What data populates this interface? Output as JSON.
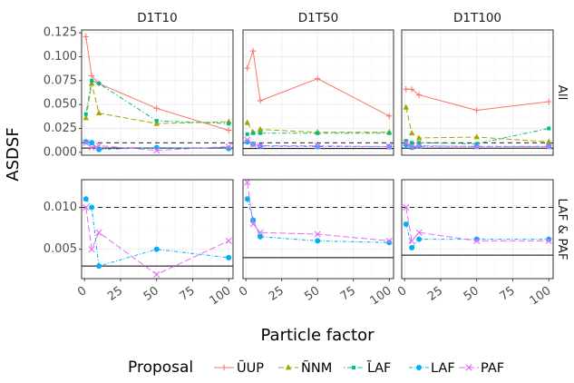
{
  "chart_data": {
    "type": "line",
    "ylabel": "ASDSF",
    "xlabel": "Particle factor",
    "x": [
      1,
      5,
      10,
      50,
      100
    ],
    "x_ticks": [
      0,
      25,
      50,
      75,
      100
    ],
    "x_tick_labels": [
      "0",
      "25",
      "50",
      "75",
      "100"
    ],
    "xlim": [
      -2,
      103
    ],
    "columns": [
      "D1T10",
      "D1T50",
      "D1T100"
    ],
    "rows": [
      "All",
      "LAF & PAF"
    ],
    "row_scales": [
      {
        "ylim": [
          -0.003,
          0.128
        ],
        "ticks": [
          0.0,
          0.025,
          0.05,
          0.075,
          0.1,
          0.125
        ],
        "tick_labels": [
          "0.000",
          "0.025",
          "0.050",
          "0.075",
          "0.100",
          "0.125"
        ]
      },
      {
        "ylim": [
          0.0015,
          0.0133
        ],
        "ticks": [
          0.005,
          0.01
        ],
        "tick_labels": [
          "0.005",
          "0.010"
        ]
      }
    ],
    "legend": {
      "title": "Proposal",
      "placement": "bottom",
      "entries": [
        "ŨUP",
        "ÑNM",
        "L̃AF",
        "LAF",
        "PAF"
      ]
    },
    "series_styles": [
      {
        "name": "ŨUP",
        "color": "#F8766D",
        "dash": "",
        "marker": "plus"
      },
      {
        "name": "ÑNM",
        "color": "#A3A500",
        "dash": "6 3",
        "marker": "triangle"
      },
      {
        "name": "L̃AF",
        "color": "#00BF7D",
        "dash": "1.5 2.5 5 2.5",
        "marker": "square"
      },
      {
        "name": "LAF",
        "color": "#00B0F6",
        "dash": "4 2 1 2",
        "marker": "circle"
      },
      {
        "name": "PAF",
        "color": "#E76BF3",
        "dash": "7 3",
        "marker": "x"
      }
    ],
    "panels": [
      {
        "row": 0,
        "col": 0,
        "hline_dashed": 0.01,
        "hline_solid": 0.0045,
        "series": [
          {
            "name": "ŨUP",
            "values": [
              0.121,
              0.08,
              0.072,
              0.046,
              0.023
            ]
          },
          {
            "name": "ÑNM",
            "values": [
              0.036,
              0.072,
              0.041,
              0.03,
              0.032
            ]
          },
          {
            "name": "L̃AF",
            "values": [
              0.04,
              0.075,
              0.072,
              0.033,
              0.03
            ]
          },
          {
            "name": "LAF",
            "values": [
              0.011,
              0.01,
              0.003,
              0.005,
              0.004
            ]
          },
          {
            "name": "PAF",
            "values": [
              0.01,
              0.005,
              0.007,
              0.002,
              0.006
            ]
          }
        ]
      },
      {
        "row": 0,
        "col": 1,
        "hline_dashed": 0.01,
        "hline_solid": 0.004,
        "series": [
          {
            "name": "ŨUP",
            "values": [
              0.088,
              0.106,
              0.054,
              0.077,
              0.038
            ]
          },
          {
            "name": "ÑNM",
            "values": [
              0.031,
              0.021,
              0.024,
              0.021,
              0.021
            ]
          },
          {
            "name": "L̃AF",
            "values": [
              0.019,
              0.02,
              0.02,
              0.02,
              0.02
            ]
          },
          {
            "name": "LAF",
            "values": [
              0.011,
              0.0085,
              0.0065,
              0.006,
              0.0058
            ]
          },
          {
            "name": "PAF",
            "values": [
              0.013,
              0.008,
              0.007,
              0.0068,
              0.006
            ]
          }
        ]
      },
      {
        "row": 0,
        "col": 2,
        "hline_dashed": 0.01,
        "hline_solid": 0.0043,
        "series": [
          {
            "name": "ŨUP",
            "values": [
              0.066,
              0.066,
              0.06,
              0.044,
              0.053
            ]
          },
          {
            "name": "ÑNM",
            "values": [
              0.047,
              0.02,
              0.015,
              0.016,
              0.011
            ]
          },
          {
            "name": "L̃AF",
            "values": [
              0.012,
              0.01,
              0.01,
              0.009,
              0.025
            ]
          },
          {
            "name": "LAF",
            "values": [
              0.008,
              0.0052,
              0.0062,
              0.0062,
              0.0062
            ]
          },
          {
            "name": "PAF",
            "values": [
              0.01,
              0.006,
              0.007,
              0.006,
              0.006
            ]
          }
        ]
      },
      {
        "row": 1,
        "col": 0,
        "hline_dashed": 0.01,
        "hline_solid": 0.003,
        "series": [
          {
            "name": "LAF",
            "values": [
              0.011,
              0.01,
              0.003,
              0.005,
              0.004
            ]
          },
          {
            "name": "PAF",
            "values": [
              0.01,
              0.005,
              0.007,
              0.002,
              0.006
            ]
          }
        ]
      },
      {
        "row": 1,
        "col": 1,
        "hline_dashed": 0.01,
        "hline_solid": 0.004,
        "series": [
          {
            "name": "LAF",
            "values": [
              0.011,
              0.0085,
              0.0065,
              0.006,
              0.0058
            ]
          },
          {
            "name": "PAF",
            "values": [
              0.013,
              0.008,
              0.007,
              0.0068,
              0.006
            ]
          }
        ]
      },
      {
        "row": 1,
        "col": 2,
        "hline_dashed": 0.01,
        "hline_solid": 0.0043,
        "series": [
          {
            "name": "LAF",
            "values": [
              0.008,
              0.0052,
              0.0062,
              0.0062,
              0.0062
            ]
          },
          {
            "name": "PAF",
            "values": [
              0.01,
              0.006,
              0.007,
              0.006,
              0.006
            ]
          }
        ]
      }
    ],
    "grid": true
  }
}
